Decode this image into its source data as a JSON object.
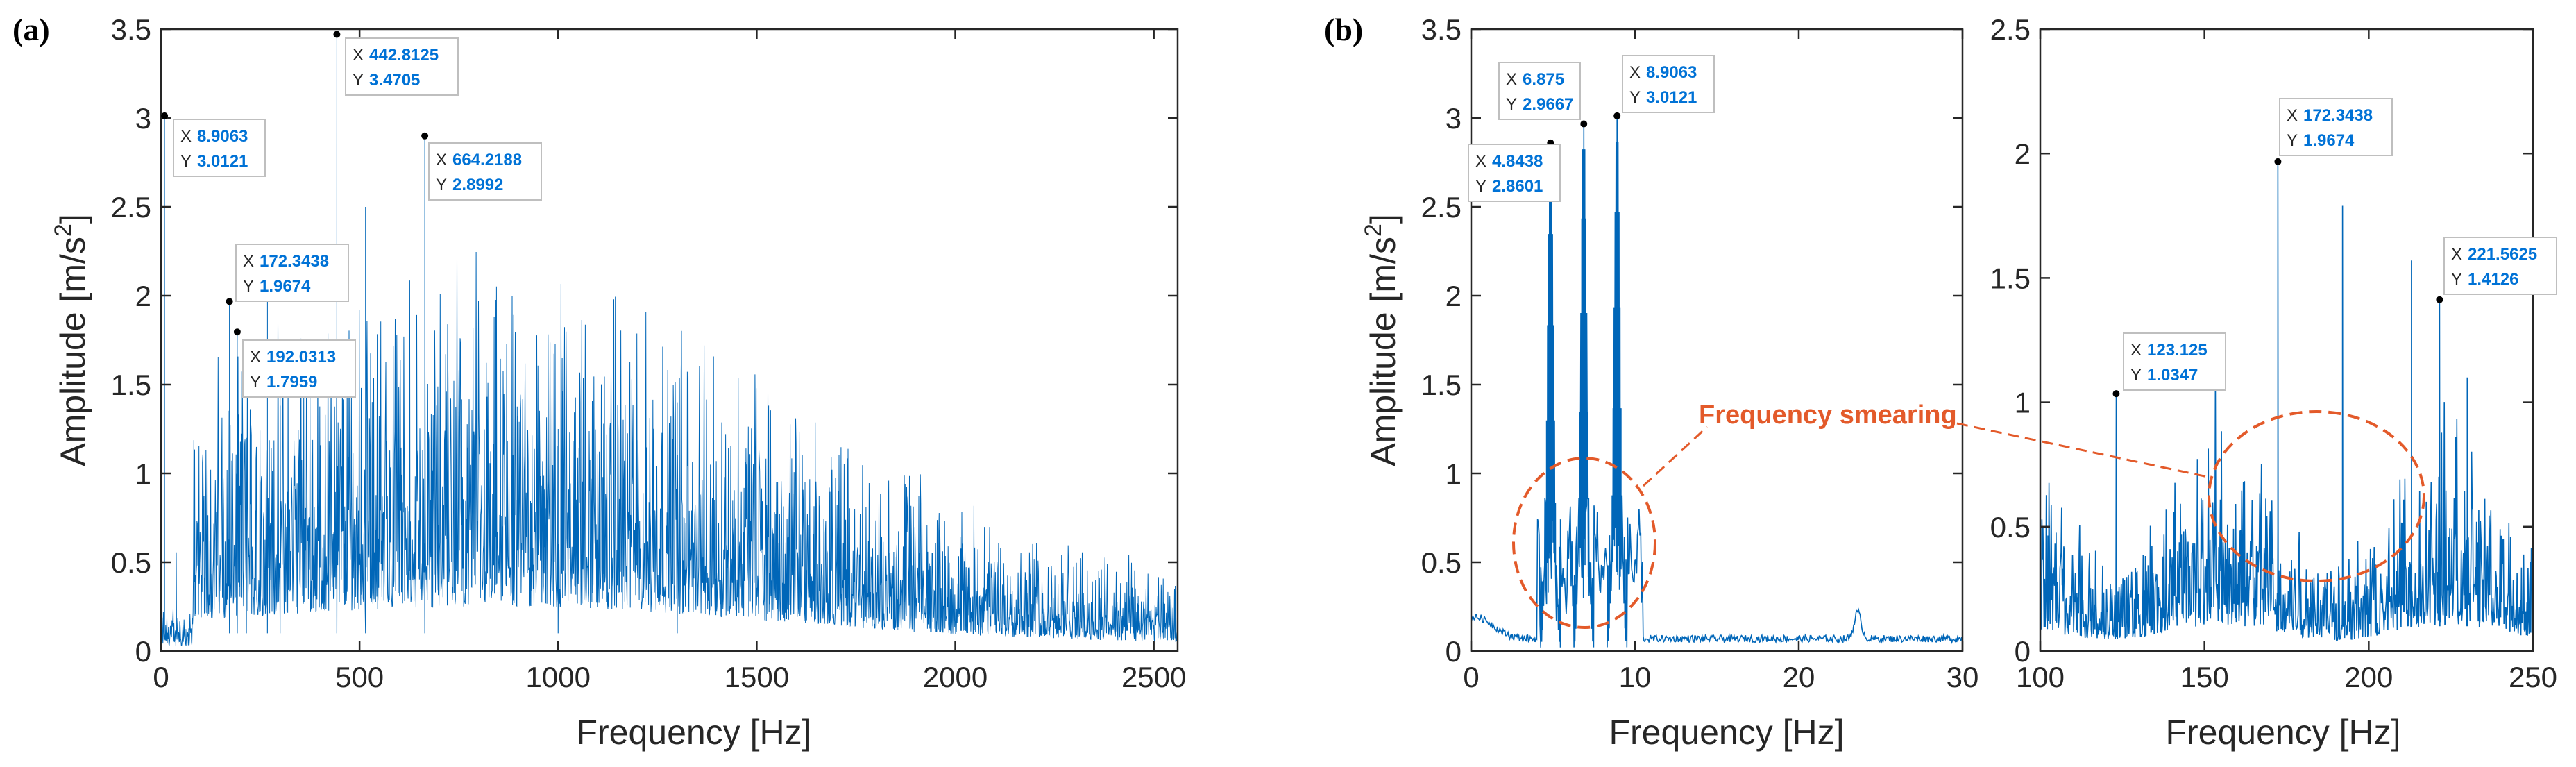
{
  "chart_data": [
    {
      "panel_label": "(a)",
      "type": "line",
      "xlabel": "Frequency [Hz]",
      "ylabel_main": "Amplitude [m/s",
      "ylabel_sup": "2",
      "ylabel_close": "]",
      "xlim": [
        0,
        2560
      ],
      "ylim": [
        0,
        3.5
      ],
      "xticks": [
        0,
        500,
        1000,
        1500,
        2000,
        2500
      ],
      "yticks": [
        0,
        0.5,
        1,
        1.5,
        2,
        2.5,
        3,
        3.5
      ],
      "line_color": "#0066b8",
      "peaks": [
        {
          "x": 8.9063,
          "y": 3.0121
        },
        {
          "x": 172.3438,
          "y": 1.9674
        },
        {
          "x": 192.0313,
          "y": 1.7959
        },
        {
          "x": 215,
          "y": 1.2
        },
        {
          "x": 268,
          "y": 2.0
        },
        {
          "x": 300,
          "y": 1.55
        },
        {
          "x": 442.8125,
          "y": 3.4705
        },
        {
          "x": 515,
          "y": 2.5
        },
        {
          "x": 664.2188,
          "y": 2.8992
        },
        {
          "x": 1000,
          "y": 1.25
        },
        {
          "x": 1300,
          "y": 1.4
        }
      ],
      "datatips": [
        {
          "x_label": "X",
          "x": "8.9063",
          "y_label": "Y",
          "y": "3.0121"
        },
        {
          "x_label": "X",
          "x": "172.3438",
          "y_label": "Y",
          "y": "1.9674"
        },
        {
          "x_label": "X",
          "x": "192.0313",
          "y_label": "Y",
          "y": "1.7959"
        },
        {
          "x_label": "X",
          "x": "442.8125",
          "y_label": "Y",
          "y": "3.4705"
        },
        {
          "x_label": "X",
          "x": "664.2188",
          "y_label": "Y",
          "y": "2.8992"
        }
      ]
    },
    {
      "panel_label": "(b)",
      "type": "line",
      "xlabel": "Frequency [Hz]",
      "ylabel_main": "Amplitude [m/s",
      "ylabel_sup": "2",
      "ylabel_close": "]",
      "xlim": [
        0,
        30
      ],
      "ylim": [
        0,
        3.5
      ],
      "xticks": [
        0,
        10,
        20,
        30
      ],
      "yticks": [
        0,
        0.5,
        1,
        1.5,
        2,
        2.5,
        3,
        3.5
      ],
      "line_color": "#0066b8",
      "peaks": [
        {
          "x": 4.8438,
          "y": 2.8601
        },
        {
          "x": 6.875,
          "y": 2.9667
        },
        {
          "x": 8.9063,
          "y": 3.0121
        }
      ],
      "datatips": [
        {
          "x_label": "X",
          "x": "4.8438",
          "y_label": "Y",
          "y": "2.8601"
        },
        {
          "x_label": "X",
          "x": "6.875",
          "y_label": "Y",
          "y": "2.9667"
        },
        {
          "x_label": "X",
          "x": "8.9063",
          "y_label": "Y",
          "y": "3.0121"
        }
      ]
    },
    {
      "type": "line",
      "xlabel": "Frequency [Hz]",
      "xlim": [
        100,
        250
      ],
      "ylim": [
        0,
        2.5
      ],
      "xticks": [
        100,
        150,
        200,
        250
      ],
      "yticks": [
        0,
        0.5,
        1,
        1.5,
        2,
        2.5
      ],
      "line_color": "#0066b8",
      "peaks": [
        {
          "x": 123.125,
          "y": 1.0347
        },
        {
          "x": 172.3438,
          "y": 1.9674
        },
        {
          "x": 192.0313,
          "y": 1.79
        },
        {
          "x": 213,
          "y": 1.57
        },
        {
          "x": 221.5625,
          "y": 1.4126
        },
        {
          "x": 230,
          "y": 1.1
        }
      ],
      "datatips": [
        {
          "x_label": "X",
          "x": "123.125",
          "y_label": "Y",
          "y": "1.0347"
        },
        {
          "x_label": "X",
          "x": "172.3438",
          "y_label": "Y",
          "y": "1.9674"
        },
        {
          "x_label": "X",
          "x": "221.5625",
          "y_label": "Y",
          "y": "1.4126"
        }
      ]
    }
  ],
  "annotation": {
    "text": "Frequency smearing",
    "color": "#e35a2a"
  }
}
